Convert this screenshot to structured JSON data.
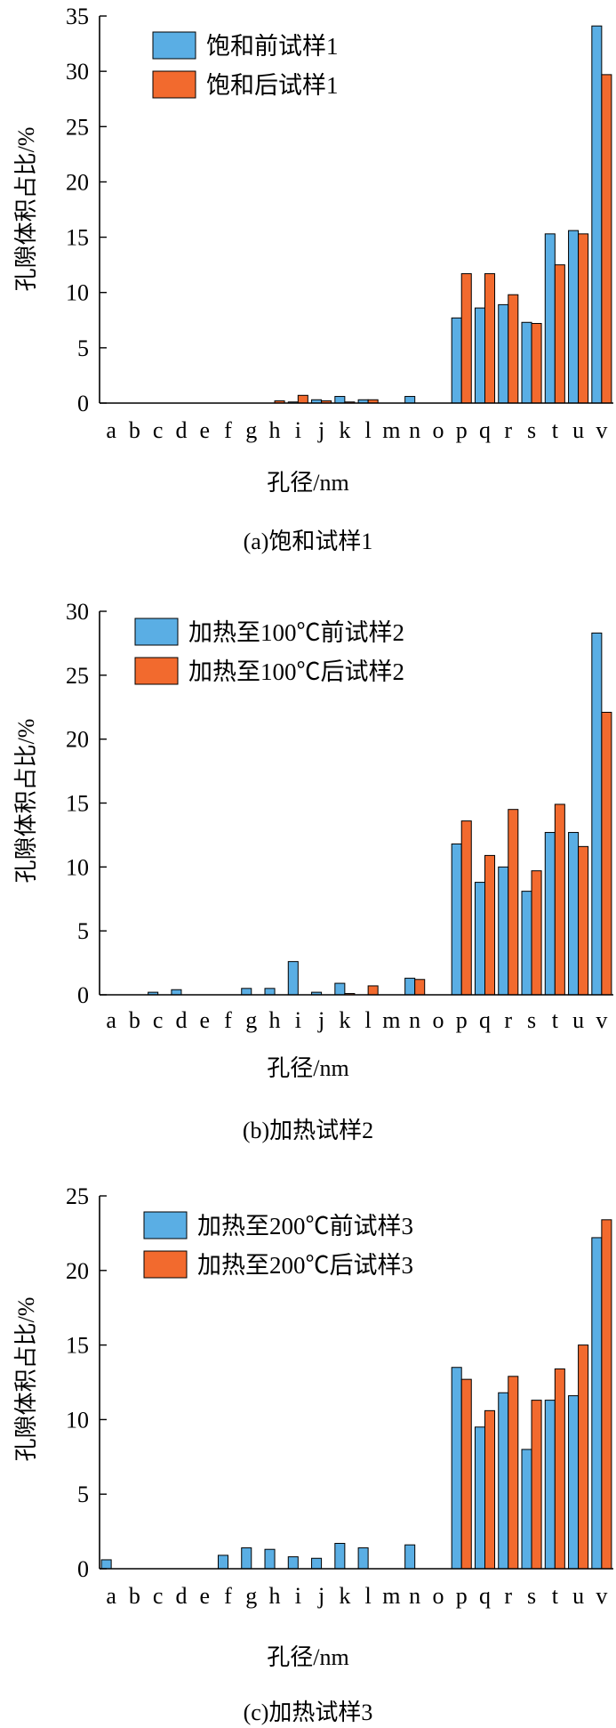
{
  "chart_data": [
    {
      "type": "bar",
      "caption": "(a)饱和试样1",
      "xlabel": "孔径/nm",
      "ylabel": "孔隙体积占比/%",
      "ylim": [
        0,
        35
      ],
      "yticks": [
        0,
        5,
        10,
        15,
        20,
        25,
        30,
        35
      ],
      "categories": [
        "a",
        "b",
        "c",
        "d",
        "e",
        "f",
        "g",
        "h",
        "i",
        "j",
        "k",
        "l",
        "m",
        "n",
        "o",
        "p",
        "q",
        "r",
        "s",
        "t",
        "u",
        "v"
      ],
      "legend_position": "top-left",
      "series": [
        {
          "name": "饱和前试样1",
          "color": "#5aaee4",
          "values": [
            0,
            0,
            0,
            0,
            0,
            0,
            0,
            0,
            0.1,
            0.3,
            0.6,
            0.3,
            0,
            0.6,
            0,
            7.7,
            8.6,
            8.9,
            7.3,
            15.3,
            15.6,
            34.1
          ]
        },
        {
          "name": "饱和后试样1",
          "color": "#f26a2e",
          "values": [
            0,
            0,
            0,
            0,
            0,
            0,
            0,
            0.2,
            0.7,
            0.2,
            0.1,
            0.3,
            0,
            0,
            0,
            11.7,
            11.7,
            9.8,
            7.2,
            12.5,
            15.3,
            29.7
          ]
        }
      ]
    },
    {
      "type": "bar",
      "caption": "(b)加热试样2",
      "xlabel": "孔径/nm",
      "ylabel": "孔隙体积占比/%",
      "ylim": [
        0,
        30
      ],
      "yticks": [
        0,
        5,
        10,
        15,
        20,
        25,
        30
      ],
      "categories": [
        "a",
        "b",
        "c",
        "d",
        "e",
        "f",
        "g",
        "h",
        "i",
        "j",
        "k",
        "l",
        "m",
        "n",
        "o",
        "p",
        "q",
        "r",
        "s",
        "t",
        "u",
        "v"
      ],
      "legend_position": "top-left",
      "series": [
        {
          "name": "加热至100℃前试样2",
          "color": "#5aaee4",
          "values": [
            0,
            0,
            0.2,
            0.4,
            0,
            0,
            0.5,
            0.5,
            2.6,
            0.2,
            0.9,
            0,
            0,
            1.3,
            0,
            11.8,
            8.8,
            10.0,
            8.1,
            12.7,
            12.7,
            28.3
          ]
        },
        {
          "name": "加热至100℃后试样2",
          "color": "#f26a2e",
          "values": [
            0,
            0,
            0,
            0,
            0,
            0,
            0,
            0,
            0,
            0,
            0.1,
            0.7,
            0,
            1.2,
            0,
            13.6,
            10.9,
            14.5,
            9.7,
            14.9,
            11.6,
            22.1
          ]
        }
      ]
    },
    {
      "type": "bar",
      "caption": "(c)加热试样3",
      "xlabel": "孔径/nm",
      "ylabel": "孔隙体积占比/%",
      "ylim": [
        0,
        25
      ],
      "yticks": [
        0,
        5,
        10,
        15,
        20,
        25
      ],
      "categories": [
        "a",
        "b",
        "c",
        "d",
        "e",
        "f",
        "g",
        "h",
        "i",
        "j",
        "k",
        "l",
        "m",
        "n",
        "o",
        "p",
        "q",
        "r",
        "s",
        "t",
        "u",
        "v"
      ],
      "legend_position": "top-left",
      "series": [
        {
          "name": "加热至200℃前试样3",
          "color": "#5aaee4",
          "values": [
            0.6,
            0,
            0,
            0,
            0,
            0.9,
            1.4,
            1.3,
            0.8,
            0.7,
            1.7,
            1.4,
            0,
            1.6,
            0,
            13.5,
            9.5,
            11.8,
            8.0,
            11.3,
            11.6,
            22.2
          ]
        },
        {
          "name": "加热至200℃后试样3",
          "color": "#f26a2e",
          "values": [
            0,
            0,
            0,
            0,
            0,
            0,
            0,
            0,
            0,
            0,
            0,
            0,
            0,
            0,
            0,
            12.7,
            10.6,
            12.9,
            11.3,
            13.4,
            15.0,
            23.4
          ]
        }
      ]
    }
  ]
}
